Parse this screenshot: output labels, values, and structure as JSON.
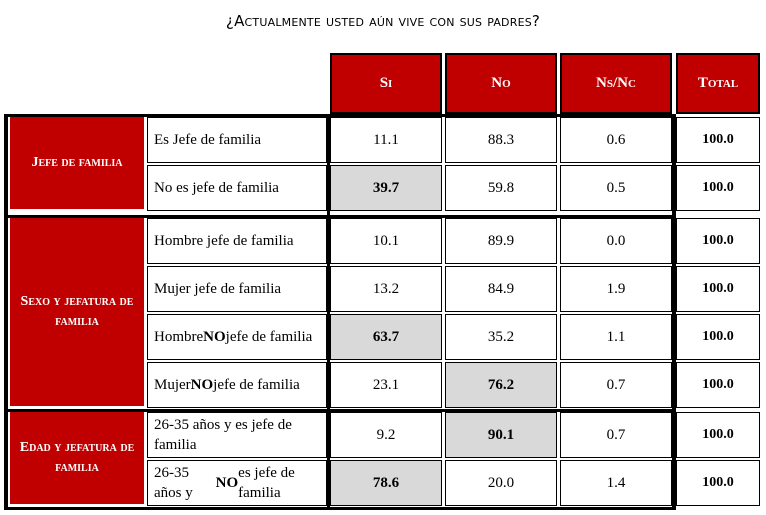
{
  "title": "¿Actualmente usted aún vive con sus padres?",
  "columns": [
    "Si",
    "No",
    "Ns/Nc",
    "Total"
  ],
  "groups": [
    {
      "label": "Jefe de familia",
      "rows": [
        {
          "label_html": "Es Jefe de familia",
          "si": "11.1",
          "no": "88.3",
          "nsnc": "0.6",
          "total": "100.0",
          "highlight": ""
        },
        {
          "label_html": "No es jefe de familia",
          "si": "39.7",
          "no": "59.8",
          "nsnc": "0.5",
          "total": "100.0",
          "highlight": "si"
        }
      ]
    },
    {
      "label": "Sexo y jefatura de familia",
      "rows": [
        {
          "label_html": "Hombre jefe de familia",
          "si": "10.1",
          "no": "89.9",
          "nsnc": "0.0",
          "total": "100.0",
          "highlight": ""
        },
        {
          "label_html": "Mujer jefe de familia",
          "si": "13.2",
          "no": "84.9",
          "nsnc": "1.9",
          "total": "100.0",
          "highlight": ""
        },
        {
          "label_html": "Hombre <b>NO</b> jefe de familia",
          "si": "63.7",
          "no": "35.2",
          "nsnc": "1.1",
          "total": "100.0",
          "highlight": "si"
        },
        {
          "label_html": "Mujer <b>NO</b> jefe de familia",
          "si": "23.1",
          "no": "76.2",
          "nsnc": "0.7",
          "total": "100.0",
          "highlight": "no"
        }
      ]
    },
    {
      "label": "Edad y jefatura de familia",
      "rows": [
        {
          "label_html": "26-35 años y es jefe de familia",
          "si": "9.2",
          "no": "90.1",
          "nsnc": "0.7",
          "total": "100.0",
          "highlight": "no"
        },
        {
          "label_html": "26-35 años y <b>NO</b> es jefe de familia",
          "si": "78.6",
          "no": "20.0",
          "nsnc": "1.4",
          "total": "100.0",
          "highlight": "si"
        }
      ]
    }
  ],
  "colors": {
    "header_red": "#c00000",
    "highlight_gray": "#d9d9d9"
  }
}
